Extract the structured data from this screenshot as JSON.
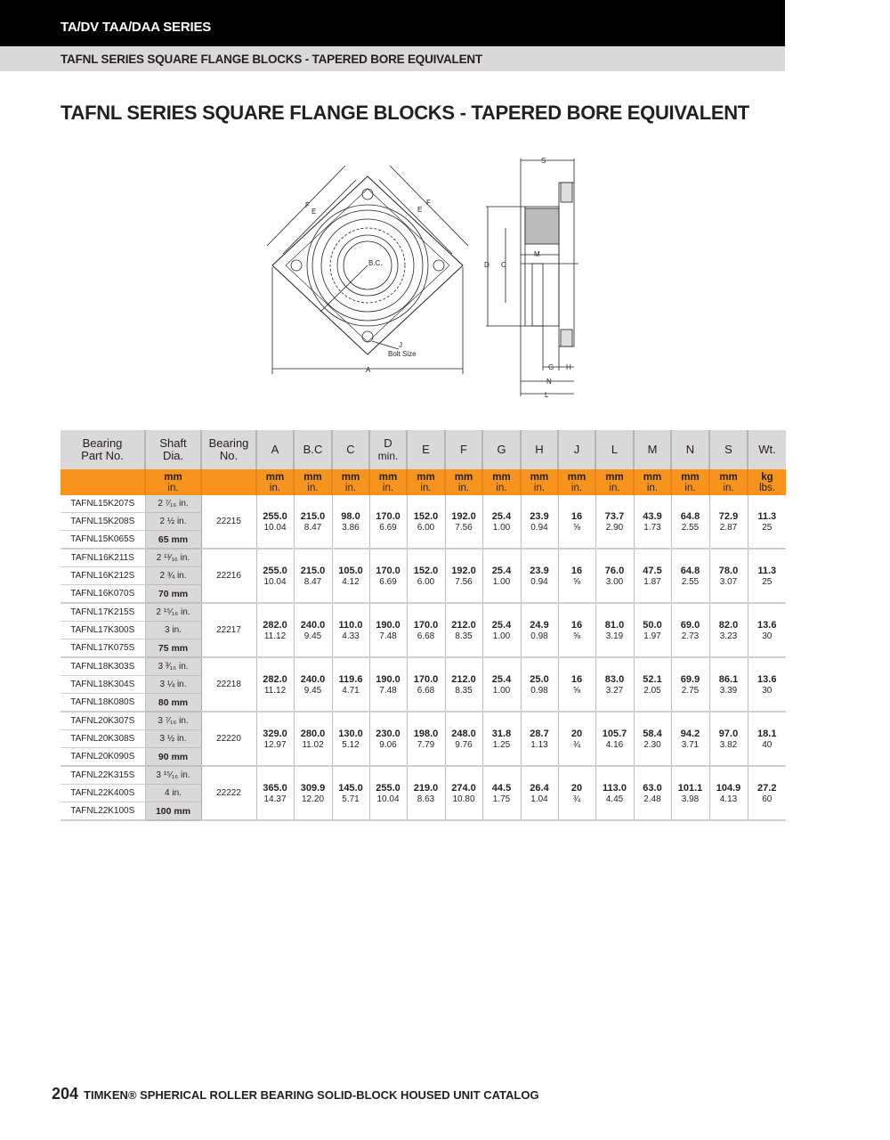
{
  "header": {
    "series": "TA/DV TAA/DAA SERIES",
    "subtitle": "TAFNL SERIES SQUARE FLANGE BLOCKS - TAPERED BORE EQUIVALENT"
  },
  "title": "TAFNL SERIES SQUARE FLANGE BLOCKS - TAPERED BORE EQUIVALENT",
  "drawing": {
    "labels": {
      "A": "A",
      "BC": "B.C.",
      "C": "C",
      "D": "D",
      "E": "E",
      "F": "F",
      "J": "J",
      "bolt_size": "Bolt Size",
      "S": "S",
      "M": "M",
      "G": "G",
      "H": "H",
      "N": "N",
      "L": "L"
    }
  },
  "table": {
    "headers": [
      {
        "l1": "Bearing",
        "l2": "Part No."
      },
      {
        "l1": "Shaft",
        "l2": "Dia."
      },
      {
        "l1": "Bearing",
        "l2": "No."
      },
      {
        "l1": "A"
      },
      {
        "l1": "B.C"
      },
      {
        "l1": "C"
      },
      {
        "l1": "D",
        "l2": "min."
      },
      {
        "l1": "E"
      },
      {
        "l1": "F"
      },
      {
        "l1": "G"
      },
      {
        "l1": "H"
      },
      {
        "l1": "J"
      },
      {
        "l1": "L"
      },
      {
        "l1": "M"
      },
      {
        "l1": "N"
      },
      {
        "l1": "S"
      },
      {
        "l1": "Wt."
      }
    ],
    "units": [
      {
        "a": "",
        "b": ""
      },
      {
        "a": "mm",
        "b": "in."
      },
      {
        "a": "",
        "b": ""
      },
      {
        "a": "mm",
        "b": "in."
      },
      {
        "a": "mm",
        "b": "in."
      },
      {
        "a": "mm",
        "b": "in."
      },
      {
        "a": "mm",
        "b": "in."
      },
      {
        "a": "mm",
        "b": "in."
      },
      {
        "a": "mm",
        "b": "in."
      },
      {
        "a": "mm",
        "b": "in."
      },
      {
        "a": "mm",
        "b": "in."
      },
      {
        "a": "mm",
        "b": "in."
      },
      {
        "a": "mm",
        "b": "in."
      },
      {
        "a": "mm",
        "b": "in."
      },
      {
        "a": "mm",
        "b": "in."
      },
      {
        "a": "mm",
        "b": "in."
      },
      {
        "a": "kg",
        "b": "lbs."
      }
    ],
    "groups": [
      {
        "parts": [
          "TAFNL15K207S",
          "TAFNL15K208S",
          "TAFNL15K065S"
        ],
        "shafts": [
          "2 ⁷⁄₁₆ in.",
          "2 ½ in.",
          "65 mm"
        ],
        "bearing": "22215",
        "values": [
          [
            "255.0",
            "10.04"
          ],
          [
            "215.0",
            "8.47"
          ],
          [
            "98.0",
            "3.86"
          ],
          [
            "170.0",
            "6.69"
          ],
          [
            "152.0",
            "6.00"
          ],
          [
            "192.0",
            "7.56"
          ],
          [
            "25.4",
            "1.00"
          ],
          [
            "23.9",
            "0.94"
          ],
          [
            "16",
            "⅝"
          ],
          [
            "73.7",
            "2.90"
          ],
          [
            "43.9",
            "1.73"
          ],
          [
            "64.8",
            "2.55"
          ],
          [
            "72.9",
            "2.87"
          ],
          [
            "11.3",
            "25"
          ]
        ]
      },
      {
        "parts": [
          "TAFNL16K211S",
          "TAFNL16K212S",
          "TAFNL16K070S"
        ],
        "shafts": [
          "2 ¹¹⁄₁₆ in.",
          "2 ¾ in.",
          "70 mm"
        ],
        "bearing": "22216",
        "values": [
          [
            "255.0",
            "10.04"
          ],
          [
            "215.0",
            "8.47"
          ],
          [
            "105.0",
            "4.12"
          ],
          [
            "170.0",
            "6.69"
          ],
          [
            "152.0",
            "6.00"
          ],
          [
            "192.0",
            "7.56"
          ],
          [
            "25.4",
            "1.00"
          ],
          [
            "23.9",
            "0.94"
          ],
          [
            "16",
            "⅝"
          ],
          [
            "76.0",
            "3.00"
          ],
          [
            "47.5",
            "1.87"
          ],
          [
            "64.8",
            "2.55"
          ],
          [
            "78.0",
            "3.07"
          ],
          [
            "11.3",
            "25"
          ]
        ]
      },
      {
        "parts": [
          "TAFNL17K215S",
          "TAFNL17K300S",
          "TAFNL17K075S"
        ],
        "shafts": [
          "2 ¹⁵⁄₁₆ in.",
          "3 in.",
          "75 mm"
        ],
        "bearing": "22217",
        "values": [
          [
            "282.0",
            "11.12"
          ],
          [
            "240.0",
            "9.45"
          ],
          [
            "110.0",
            "4.33"
          ],
          [
            "190.0",
            "7.48"
          ],
          [
            "170.0",
            "6.68"
          ],
          [
            "212.0",
            "8.35"
          ],
          [
            "25.4",
            "1.00"
          ],
          [
            "24.9",
            "0.98"
          ],
          [
            "16",
            "⅝"
          ],
          [
            "81.0",
            "3.19"
          ],
          [
            "50.0",
            "1.97"
          ],
          [
            "69.0",
            "2.73"
          ],
          [
            "82.0",
            "3.23"
          ],
          [
            "13.6",
            "30"
          ]
        ]
      },
      {
        "parts": [
          "TAFNL18K303S",
          "TAFNL18K304S",
          "TAFNL18K080S"
        ],
        "shafts": [
          "3 ³⁄₁₆ in.",
          "3 ¼ in.",
          "80 mm"
        ],
        "bearing": "22218",
        "values": [
          [
            "282.0",
            "11.12"
          ],
          [
            "240.0",
            "9.45"
          ],
          [
            "119.6",
            "4.71"
          ],
          [
            "190.0",
            "7.48"
          ],
          [
            "170.0",
            "6.68"
          ],
          [
            "212.0",
            "8.35"
          ],
          [
            "25.4",
            "1.00"
          ],
          [
            "25.0",
            "0.98"
          ],
          [
            "16",
            "⅝"
          ],
          [
            "83.0",
            "3.27"
          ],
          [
            "52.1",
            "2.05"
          ],
          [
            "69.9",
            "2.75"
          ],
          [
            "86.1",
            "3.39"
          ],
          [
            "13.6",
            "30"
          ]
        ]
      },
      {
        "parts": [
          "TAFNL20K307S",
          "TAFNL20K308S",
          "TAFNL20K090S"
        ],
        "shafts": [
          "3 ⁷⁄₁₆ in.",
          "3 ½ in.",
          "90 mm"
        ],
        "bearing": "22220",
        "values": [
          [
            "329.0",
            "12.97"
          ],
          [
            "280.0",
            "11.02"
          ],
          [
            "130.0",
            "5.12"
          ],
          [
            "230.0",
            "9.06"
          ],
          [
            "198.0",
            "7.79"
          ],
          [
            "248.0",
            "9.76"
          ],
          [
            "31.8",
            "1.25"
          ],
          [
            "28.7",
            "1.13"
          ],
          [
            "20",
            "¾"
          ],
          [
            "105.7",
            "4.16"
          ],
          [
            "58.4",
            "2.30"
          ],
          [
            "94.2",
            "3.71"
          ],
          [
            "97.0",
            "3.82"
          ],
          [
            "18.1",
            "40"
          ]
        ]
      },
      {
        "parts": [
          "TAFNL22K315S",
          "TAFNL22K400S",
          "TAFNL22K100S"
        ],
        "shafts": [
          "3 ¹⁵⁄₁₆ in.",
          "4 in.",
          "100 mm"
        ],
        "bearing": "22222",
        "values": [
          [
            "365.0",
            "14.37"
          ],
          [
            "309.9",
            "12.20"
          ],
          [
            "145.0",
            "5.71"
          ],
          [
            "255.0",
            "10.04"
          ],
          [
            "219.0",
            "8.63"
          ],
          [
            "274.0",
            "10.80"
          ],
          [
            "44.5",
            "1.75"
          ],
          [
            "26.4",
            "1.04"
          ],
          [
            "20",
            "¾"
          ],
          [
            "113.0",
            "4.45"
          ],
          [
            "63.0",
            "2.48"
          ],
          [
            "101.1",
            "3.98"
          ],
          [
            "104.9",
            "4.13"
          ],
          [
            "27.2",
            "60"
          ]
        ]
      }
    ]
  },
  "footer": {
    "page": "204",
    "text": "TIMKEN® SPHERICAL ROLLER BEARING SOLID-BLOCK HOUSED UNIT CATALOG"
  },
  "colors": {
    "orange": "#f7941d",
    "gray": "#d9d9d9",
    "black": "#000000"
  }
}
